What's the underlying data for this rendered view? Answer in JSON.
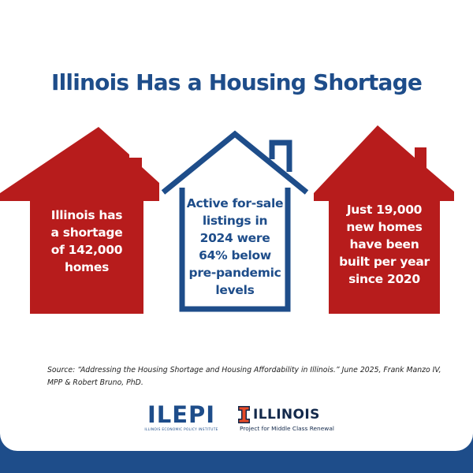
{
  "title": "Illinois Has a Housing Shortage",
  "houses": [
    {
      "style": "filled",
      "color": "#b71c1c",
      "lines": [
        "Illinois has",
        "a shortage",
        "of 142,000",
        "homes"
      ]
    },
    {
      "style": "outline",
      "color": "#1e4d8a",
      "lines": [
        "Active for-sale",
        "listings in",
        "2024 were",
        "64% below",
        "pre-pandemic",
        "levels"
      ]
    },
    {
      "style": "filled",
      "color": "#b71c1c",
      "lines": [
        "Just 19,000",
        "new homes",
        "have been",
        "built per year",
        "since 2020"
      ]
    }
  ],
  "source": {
    "label": "Source: ",
    "text": "“Addressing the Housing Shortage and Housing Affordability in Illinois.” June 2025, Frank Manzo IV, MPP & Robert Bruno, PhD."
  },
  "logos": {
    "ilepi": {
      "word": "ILEPI",
      "subtitle": "ILLINOIS ECONOMIC POLICY INSTITUTE"
    },
    "illinois": {
      "word": "ILLINOIS",
      "subtitle": "Project for Middle Class Renewal"
    }
  },
  "colors": {
    "brand_blue": "#1e4d8a",
    "brand_red": "#b71c1c",
    "illinois_orange": "#e84a27",
    "illinois_navy": "#13294b"
  }
}
